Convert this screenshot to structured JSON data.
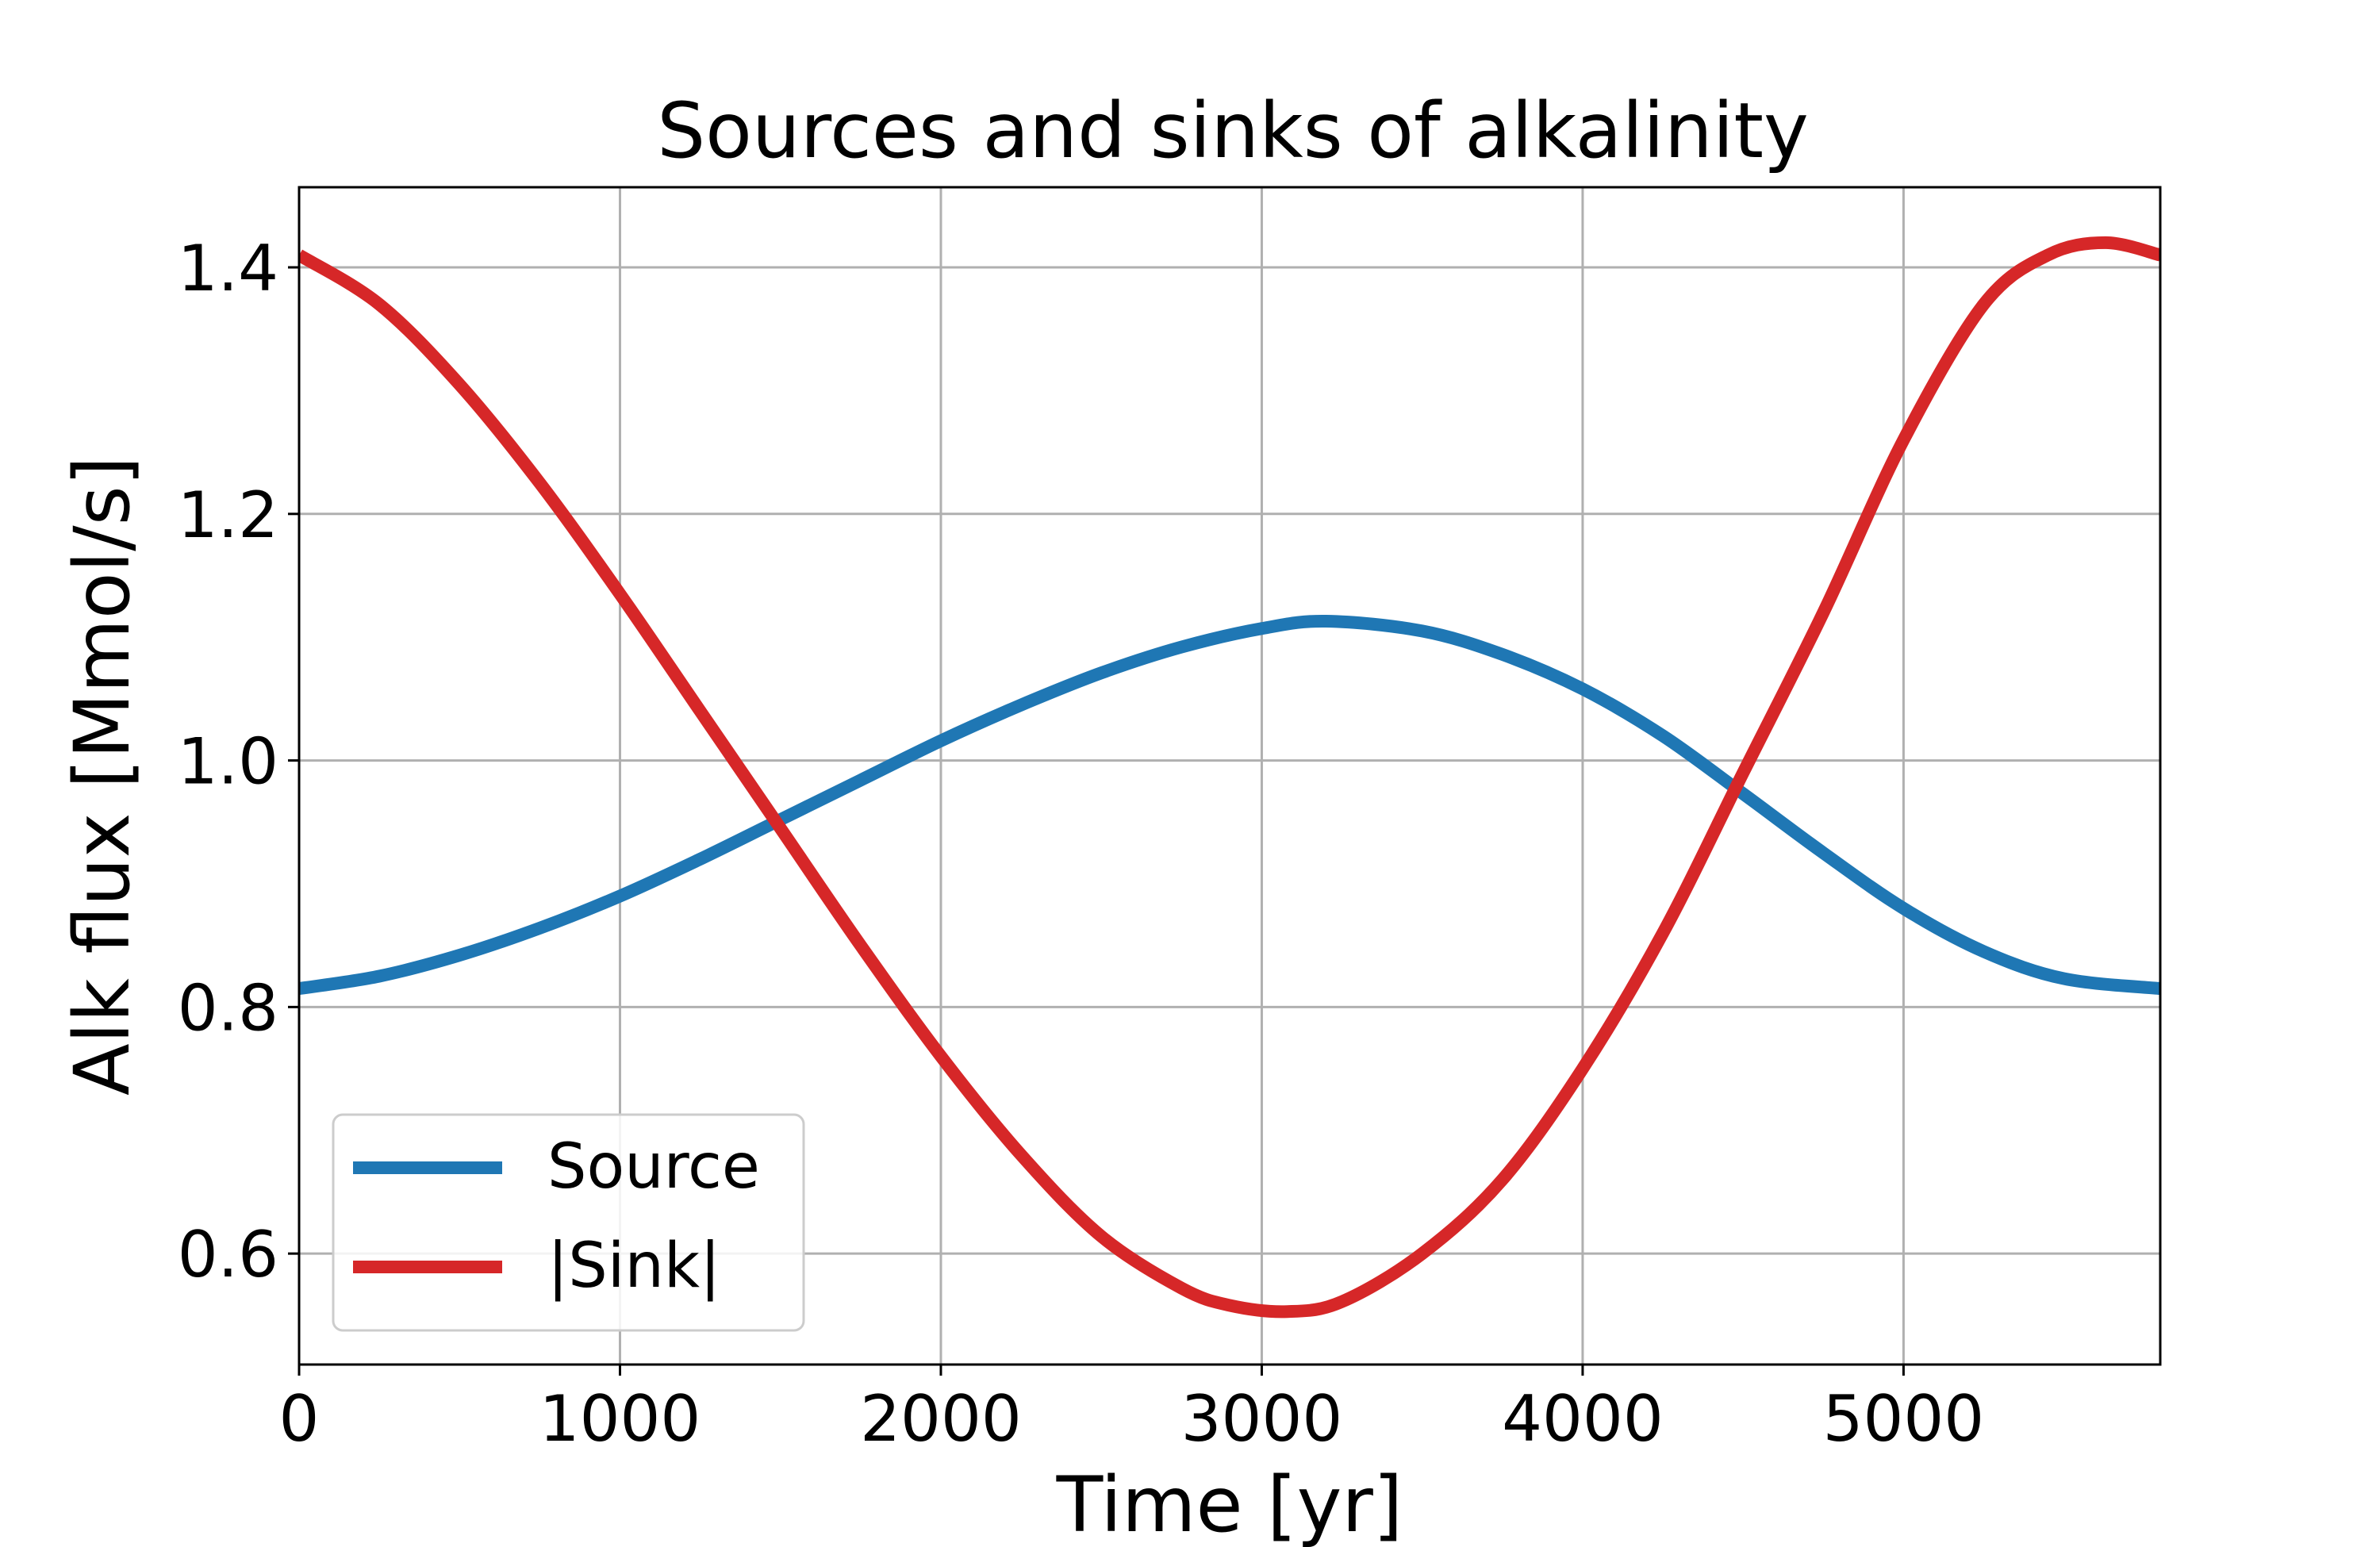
{
  "chart_data": {
    "type": "line",
    "title": "Sources and sinks of alkalinity",
    "xlabel": "Time [yr]",
    "ylabel": "Alk flux [Mmol/s]",
    "xlim": [
      0,
      5800
    ],
    "ylim": [
      0.51,
      1.465
    ],
    "xticks": [
      0,
      1000,
      2000,
      3000,
      4000,
      5000
    ],
    "yticks": [
      0.6,
      0.8,
      1.0,
      1.2,
      1.4
    ],
    "xtick_labels": [
      "0",
      "1000",
      "2000",
      "3000",
      "4000",
      "5000"
    ],
    "ytick_labels": [
      "0.6",
      "0.8",
      "1.0",
      "1.2",
      "1.4"
    ],
    "grid": true,
    "legend_position": "lower-left",
    "series": [
      {
        "name": "Source",
        "color": "#1f77b4",
        "x": [
          0,
          250,
          500,
          750,
          1000,
          1250,
          1500,
          1750,
          2000,
          2250,
          2500,
          2750,
          3000,
          3200,
          3500,
          3750,
          4000,
          4250,
          4500,
          4750,
          5000,
          5250,
          5500,
          5800
        ],
        "y": [
          0.815,
          0.825,
          0.842,
          0.864,
          0.89,
          0.92,
          0.952,
          0.984,
          1.016,
          1.045,
          1.071,
          1.092,
          1.107,
          1.113,
          1.105,
          1.086,
          1.058,
          1.02,
          0.973,
          0.925,
          0.88,
          0.845,
          0.823,
          0.815
        ]
      },
      {
        "name": "|Sink|",
        "color": "#d62728",
        "x": [
          0,
          250,
          500,
          750,
          1000,
          1250,
          1500,
          1750,
          2000,
          2250,
          2500,
          2750,
          2900,
          3080,
          3250,
          3500,
          3750,
          4000,
          4250,
          4500,
          4750,
          5000,
          5250,
          5450,
          5630,
          5800
        ],
        "y": [
          1.41,
          1.37,
          1.305,
          1.225,
          1.135,
          1.04,
          0.945,
          0.85,
          0.76,
          0.68,
          0.614,
          0.572,
          0.558,
          0.553,
          0.561,
          0.6,
          0.66,
          0.75,
          0.86,
          0.99,
          1.12,
          1.26,
          1.37,
          1.41,
          1.42,
          1.41
        ]
      }
    ]
  }
}
